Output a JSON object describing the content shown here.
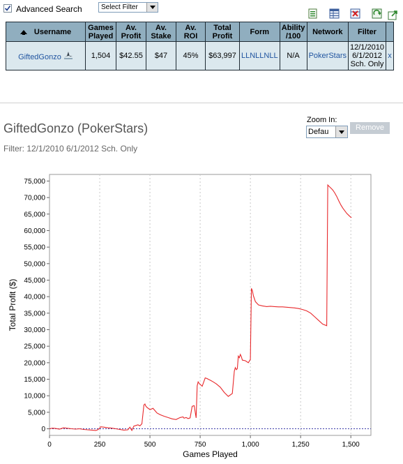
{
  "toolbar": {
    "advanced_search_label": "Advanced Search",
    "advanced_search_checked": true,
    "filter_select_value": "Select Filter"
  },
  "table": {
    "headers": {
      "username": "Username",
      "games_played": "Games Played",
      "av_profit": "Av. Profit",
      "av_stake": "Av. Stake",
      "av_roi": "Av. ROI",
      "total_profit": "Total Profit",
      "form": "Form",
      "ability": "Ability /100",
      "network": "Network",
      "filter": "Filter"
    },
    "row": {
      "username": "GiftedGonzo",
      "games_played": "1,504",
      "av_profit": "$42.55",
      "av_stake": "$47",
      "av_roi": "45%",
      "total_profit": "$63,997",
      "form": "LLNLLNLL",
      "ability": "N/A",
      "network": "PokerStars",
      "filter": "12/1/2010 6/1/2012 Sch. Only",
      "remove": "x"
    }
  },
  "graph": {
    "title": "GiftedGonzo (PokerStars)",
    "filter_text": "Filter: 12/1/2010 6/1/2012 Sch. Only",
    "zoom_label": "Zoom In:",
    "zoom_value": "Defau",
    "remove_label": "Remove"
  },
  "chart_data": {
    "type": "line",
    "xlabel": "Games Played",
    "ylabel": "Total Profit ($)",
    "xlim": [
      0,
      1600
    ],
    "ylim": [
      -2000,
      77000
    ],
    "x_ticks": [
      0,
      250,
      500,
      750,
      1000,
      1250,
      1500
    ],
    "x_tick_labels": [
      "0",
      "250",
      "500",
      "750",
      "1,000",
      "1,250",
      "1,500"
    ],
    "y_ticks": [
      0,
      5000,
      10000,
      15000,
      20000,
      25000,
      30000,
      35000,
      40000,
      45000,
      50000,
      55000,
      60000,
      65000,
      70000,
      75000
    ],
    "y_tick_labels": [
      "0",
      "5,000",
      "10,000",
      "15,000",
      "20,000",
      "25,000",
      "30,000",
      "35,000",
      "40,000",
      "45,000",
      "50,000",
      "55,000",
      "60,000",
      "65,000",
      "70,000",
      "75,000"
    ],
    "grid": true,
    "line_color": "#e8282b",
    "zero_line_color": "#3a3aa8",
    "series": [
      {
        "x": [
          0,
          15,
          30,
          50,
          70,
          90,
          110,
          130,
          150,
          170,
          190,
          210,
          230,
          240,
          250,
          255,
          270,
          290,
          310,
          330,
          350,
          370,
          390,
          400,
          410,
          420,
          430,
          440,
          450,
          460,
          470,
          475,
          478,
          485,
          500,
          515,
          525,
          535,
          550,
          570,
          590,
          610,
          630,
          650,
          665,
          670,
          680,
          690,
          700,
          710,
          720,
          730,
          735,
          740,
          745,
          760,
          775,
          785,
          790,
          800,
          815,
          830,
          850,
          870,
          890,
          910,
          920,
          925,
          930,
          935,
          940,
          945,
          950,
          955,
          960,
          975,
          990,
          1000,
          1005,
          1010,
          1015,
          1025,
          1040,
          1060,
          1080,
          1100,
          1120,
          1140,
          1160,
          1180,
          1200,
          1220,
          1240,
          1260,
          1280,
          1300,
          1320,
          1340,
          1360,
          1380,
          1385,
          1390,
          1400,
          1410,
          1420,
          1430,
          1440,
          1450,
          1460,
          1470,
          1480,
          1490,
          1500,
          1504
        ],
        "y": [
          0,
          200,
          100,
          -100,
          300,
          150,
          0,
          -100,
          0,
          -200,
          -300,
          -400,
          -500,
          -300,
          200,
          600,
          500,
          300,
          200,
          0,
          -200,
          -400,
          -300,
          500,
          -500,
          800,
          1000,
          1200,
          900,
          1500,
          7200,
          7500,
          7000,
          6500,
          5800,
          6200,
          5500,
          4800,
          4300,
          3800,
          3400,
          3000,
          2800,
          3400,
          3600,
          3200,
          3400,
          3100,
          3300,
          6800,
          7000,
          3300,
          13000,
          14200,
          13700,
          12900,
          15400,
          15200,
          15000,
          14700,
          14200,
          13600,
          12600,
          11000,
          9800,
          10700,
          17500,
          18500,
          17900,
          18200,
          22000,
          21500,
          22500,
          21800,
          20800,
          20600,
          20000,
          21000,
          42500,
          41800,
          40300,
          38500,
          37500,
          37200,
          37000,
          37100,
          37000,
          36900,
          36900,
          36800,
          36700,
          36600,
          36400,
          36100,
          35700,
          35000,
          33900,
          32800,
          31700,
          31200,
          73800,
          73500,
          72900,
          72300,
          71400,
          70300,
          69000,
          67800,
          66800,
          66000,
          65200,
          64600,
          64000,
          64000
        ]
      }
    ]
  }
}
